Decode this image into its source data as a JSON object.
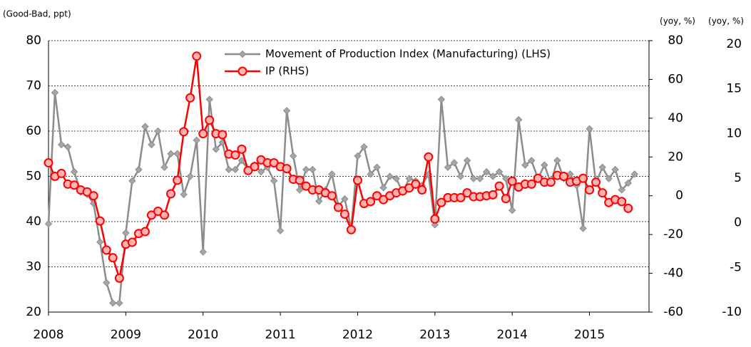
{
  "chart_data": [
    {
      "type": "line",
      "y_label": "(Good-Bad, ppt)",
      "y2_label": "(yoy, %)",
      "xlim": [
        2008,
        2015.77
      ],
      "xticks": [
        2008,
        2009,
        2010,
        2011,
        2012,
        2013,
        2014,
        2015
      ],
      "ylim": [
        20,
        80
      ],
      "yticks": [
        20,
        30,
        40,
        50,
        60,
        70,
        80
      ],
      "y2lim": [
        -60,
        80
      ],
      "y2ticks": [
        -60,
        -40,
        -20,
        0,
        20,
        40,
        60,
        80
      ],
      "grid": true,
      "legend": "top",
      "x": [
        2008,
        2008.083,
        2008.167,
        2008.25,
        2008.333,
        2008.417,
        2008.5,
        2008.583,
        2008.667,
        2008.75,
        2008.833,
        2008.917,
        2009,
        2009.083,
        2009.167,
        2009.25,
        2009.333,
        2009.417,
        2009.5,
        2009.583,
        2009.667,
        2009.75,
        2009.833,
        2009.917,
        2010,
        2010.083,
        2010.167,
        2010.25,
        2010.333,
        2010.417,
        2010.5,
        2010.583,
        2010.667,
        2010.75,
        2010.833,
        2010.917,
        2011,
        2011.083,
        2011.167,
        2011.25,
        2011.333,
        2011.417,
        2011.5,
        2011.583,
        2011.667,
        2011.75,
        2011.833,
        2011.917,
        2012,
        2012.083,
        2012.167,
        2012.25,
        2012.333,
        2012.417,
        2012.5,
        2012.583,
        2012.667,
        2012.75,
        2012.833,
        2012.917,
        2013,
        2013.083,
        2013.167,
        2013.25,
        2013.333,
        2013.417,
        2013.5,
        2013.583,
        2013.667,
        2013.75,
        2013.833,
        2013.917,
        2014,
        2014.083,
        2014.167,
        2014.25,
        2014.333,
        2014.417,
        2014.5,
        2014.583,
        2014.667,
        2014.75,
        2014.833,
        2014.917,
        2015,
        2015.083,
        2015.167,
        2015.25,
        2015.333,
        2015.417,
        2015.5,
        2015.583
      ],
      "series": [
        {
          "name": "Movement of Production Index (Manufacturing) (LHS)",
          "color": "#8c8c8c",
          "values": [
            39.5,
            68.5,
            57,
            56.5,
            51,
            46.5,
            46,
            44,
            35.5,
            26.5,
            22,
            22,
            37.5,
            49,
            51.5,
            61,
            57,
            60,
            52,
            55,
            55,
            46,
            50,
            58,
            33.3,
            67,
            56,
            57.5,
            51.5,
            51.5,
            53.5,
            51.5,
            52.5,
            51,
            52,
            49,
            38,
            64.5,
            54.5,
            47,
            51.5,
            51.5,
            44.5,
            47,
            50.5,
            43.5,
            45,
            38.5,
            54.5,
            56.5,
            50.5,
            52,
            47.5,
            50,
            49.5,
            46.5,
            49.5,
            49,
            48,
            50.5,
            39.3,
            67,
            52,
            53,
            50,
            53.5,
            49.5,
            49.5,
            51,
            50,
            51,
            49.5,
            42.5,
            62.5,
            52.5,
            53.5,
            49.5,
            52.5,
            48.5,
            53.5,
            49.5,
            50.5,
            48,
            38.5,
            60.5,
            48.5,
            52,
            49.5,
            51.5,
            47,
            48.5,
            50.5
          ]
        },
        {
          "name": "IP (RHS)",
          "color": "#ff0000",
          "axis": "y2",
          "values": [
            17,
            10,
            11.5,
            6,
            5.5,
            3,
            2,
            0,
            -13,
            -28,
            -32,
            -42.5,
            -25,
            -24,
            -19.5,
            -18.5,
            -10,
            -8,
            -10,
            1,
            8,
            33,
            50.5,
            72,
            32,
            39,
            32,
            31.5,
            21.5,
            21,
            24,
            13,
            15,
            18.5,
            17,
            17,
            15,
            14,
            8.5,
            8,
            5,
            3,
            3,
            1.5,
            0,
            -6,
            -9.5,
            -17.5,
            8,
            -4,
            -3,
            0,
            -2,
            0,
            1.5,
            2.5,
            4,
            6,
            3,
            20,
            -12,
            -3.5,
            -1,
            -1,
            -1,
            1.5,
            -0.5,
            -0.5,
            0,
            0.5,
            5,
            -1.5,
            7.5,
            4.5,
            6,
            6,
            9,
            7,
            7,
            10.5,
            10,
            7,
            7.5,
            9,
            3,
            7,
            1.5,
            -3.5,
            -2,
            -3,
            -6.5,
            null
          ]
        }
      ]
    },
    {
      "type": "axis",
      "y_label": "(yoy, %)",
      "ylim": [
        -10,
        20
      ],
      "yticks": [
        -10,
        -5,
        0,
        5,
        10,
        15,
        20
      ]
    }
  ]
}
